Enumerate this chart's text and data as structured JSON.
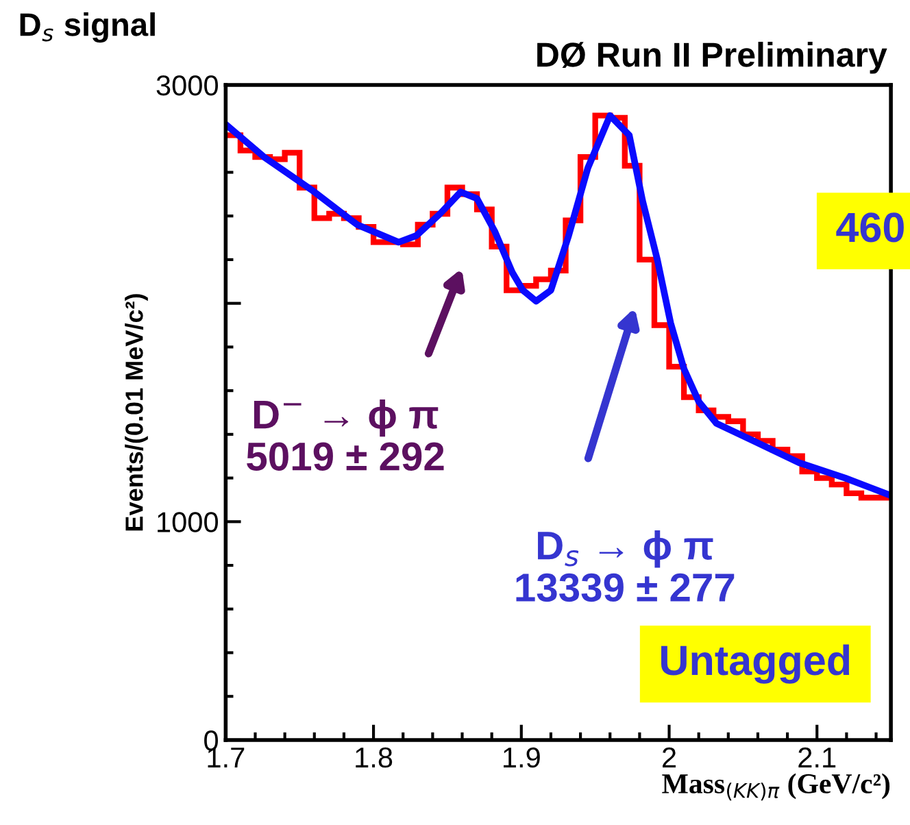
{
  "chart_data": {
    "type": "histogram",
    "title": "D$_{s}$ signal",
    "subtitle": "DØ Run II Preliminary",
    "xlabel": "Mass$_{(KK)π}$ (GeV/c²)",
    "ylabel": "Events/(0.01 MeV/c²)",
    "xlim": [
      1.7,
      2.15
    ],
    "xticks": [
      1.7,
      1.8,
      1.9,
      2,
      2.1
    ],
    "ylim": [
      0,
      3000
    ],
    "yticks": [
      0,
      1000,
      {
        "value": 2000,
        "label": null
      },
      3000
    ],
    "grid": false,
    "legend": false,
    "series": [
      {
        "color": "#ff0000",
        "bins": [
          1.7,
          1.71,
          1.72,
          1.73,
          1.74,
          1.75,
          1.76,
          1.77,
          1.78,
          1.79,
          1.8,
          1.81,
          1.82,
          1.83,
          1.84,
          1.85,
          1.86,
          1.87,
          1.88,
          1.89,
          1.9,
          1.91,
          1.92,
          1.93,
          1.94,
          1.95,
          1.96,
          1.97,
          1.98,
          1.99,
          2.0,
          2.01,
          2.02,
          2.03,
          2.04,
          2.05,
          2.06,
          2.07,
          2.08,
          2.09,
          2.1,
          2.11,
          2.12,
          2.13,
          2.14,
          2.15
        ],
        "values": [
          2770,
          2700,
          2670,
          2660,
          2690,
          2530,
          2390,
          2410,
          2390,
          2350,
          2280,
          2280,
          2270,
          2360,
          2410,
          2530,
          2500,
          2430,
          2260,
          2060,
          2080,
          2110,
          2150,
          2380,
          2670,
          2860,
          2850,
          2630,
          2200,
          1900,
          1710,
          1570,
          1510,
          1480,
          1460,
          1400,
          1370,
          1330,
          1300,
          1230,
          1200,
          1170,
          1130,
          1110,
          1110
        ]
      },
      {
        "type": "line",
        "color": "#0a0aff",
        "x": [
          1.7,
          1.726,
          1.758,
          1.789,
          1.817,
          1.829,
          1.845,
          1.859,
          1.87,
          1.882,
          1.894,
          1.901,
          1.91,
          1.92,
          1.932,
          1.945,
          1.96,
          1.973,
          1.982,
          1.992,
          2.001,
          2.01,
          2.02,
          2.032,
          2.057,
          2.088,
          2.119,
          2.15
        ],
        "values": [
          2820,
          2670,
          2520,
          2360,
          2280,
          2310,
          2410,
          2510,
          2480,
          2330,
          2140,
          2060,
          2010,
          2060,
          2310,
          2620,
          2860,
          2770,
          2470,
          2200,
          1910,
          1700,
          1550,
          1450,
          1370,
          1270,
          1200,
          1120
        ]
      }
    ],
    "annotations": [
      "D$^{−}$ → ϕ π\n5019 ± 292",
      "D$_{s}$ → ϕ π\n13339 ± 277",
      "460",
      "Untagged"
    ]
  }
}
